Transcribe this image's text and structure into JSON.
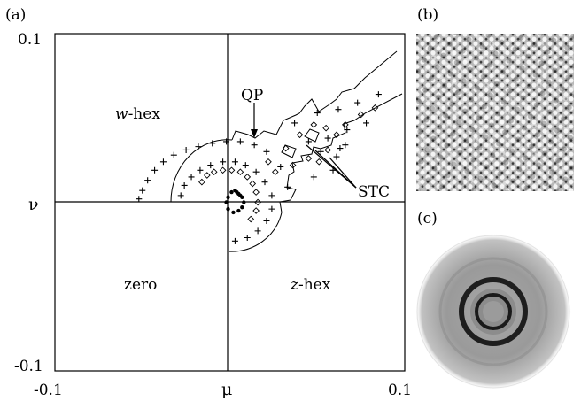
{
  "panel_labels": {
    "a": "(a)",
    "b": "(b)",
    "c": "(c)"
  },
  "axes": {
    "xlabel": "μ",
    "ylabel": "ν",
    "x_ticks": [
      "-0.1",
      "0.1"
    ],
    "y_ticks": [
      "0.1",
      "-0.1"
    ]
  },
  "region_labels": {
    "w_prefix": "w",
    "w_suffix": "-hex",
    "zero": "zero",
    "z_prefix": "z",
    "z_suffix": "-hex",
    "qp": "QP",
    "stc": "STC"
  },
  "chart_data": {
    "type": "scatter",
    "xlim": [
      -0.1,
      0.1
    ],
    "ylim": [
      -0.1,
      0.1
    ],
    "grid": false,
    "series": [
      {
        "marker": "plus",
        "points": [
          [
            -0.052,
            0.002
          ],
          [
            -0.05,
            0.007
          ],
          [
            -0.047,
            0.013
          ],
          [
            -0.043,
            0.019
          ],
          [
            -0.038,
            0.024
          ],
          [
            -0.032,
            0.028
          ],
          [
            -0.025,
            0.031
          ],
          [
            -0.018,
            0.033
          ],
          [
            -0.01,
            0.035
          ],
          [
            -0.002,
            0.036
          ],
          [
            0.006,
            0.036
          ],
          [
            0.014,
            0.034
          ],
          [
            0.021,
            0.03
          ],
          [
            0.029,
            0.021
          ],
          [
            0.033,
            0.009
          ],
          [
            -0.028,
            0.004
          ],
          [
            -0.026,
            0.01
          ],
          [
            -0.022,
            0.015
          ],
          [
            -0.017,
            0.019
          ],
          [
            -0.011,
            0.022
          ],
          [
            -0.004,
            0.024
          ],
          [
            0.003,
            0.024
          ],
          [
            0.009,
            0.022
          ],
          [
            0.015,
            0.018
          ],
          [
            0.02,
            0.012
          ],
          [
            0.024,
            0.004
          ],
          [
            0.024,
            -0.004
          ],
          [
            0.021,
            -0.011
          ],
          [
            0.016,
            -0.017
          ],
          [
            0.01,
            -0.021
          ],
          [
            0.003,
            -0.023
          ],
          [
            0.037,
            0.047
          ],
          [
            0.05,
            0.053
          ],
          [
            0.062,
            0.055
          ],
          [
            0.073,
            0.059
          ],
          [
            0.085,
            0.064
          ],
          [
            0.045,
            0.036
          ],
          [
            0.056,
            0.038
          ],
          [
            0.067,
            0.043
          ],
          [
            0.078,
            0.047
          ],
          [
            0.052,
            0.03
          ],
          [
            0.063,
            0.032
          ],
          [
            0.048,
            0.015
          ],
          [
            0.059,
            0.019
          ],
          [
            0.061,
            0.027
          ],
          [
            0.066,
            0.034
          ]
        ]
      },
      {
        "marker": "diamond",
        "points": [
          [
            -0.016,
            0.012
          ],
          [
            -0.013,
            0.016
          ],
          [
            -0.009,
            0.018
          ],
          [
            -0.004,
            0.019
          ],
          [
            0.001,
            0.019
          ],
          [
            0.006,
            0.018
          ],
          [
            0.01,
            0.015
          ],
          [
            0.013,
            0.011
          ],
          [
            0.015,
            0.006
          ],
          [
            0.016,
            0.0
          ],
          [
            0.015,
            -0.005
          ],
          [
            0.012,
            -0.01
          ],
          [
            0.022,
            0.024
          ],
          [
            0.032,
            0.032
          ],
          [
            0.04,
            0.04
          ],
          [
            0.048,
            0.046
          ],
          [
            0.055,
            0.044
          ],
          [
            0.066,
            0.046
          ],
          [
            0.075,
            0.052
          ],
          [
            0.083,
            0.056
          ],
          [
            0.026,
            0.018
          ],
          [
            0.036,
            0.022
          ],
          [
            0.045,
            0.026
          ],
          [
            0.051,
            0.024
          ],
          [
            0.056,
            0.031
          ],
          [
            0.061,
            0.04
          ]
        ]
      },
      {
        "marker": "filled-arc",
        "points": [
          [
            0.003,
            0.007
          ],
          [
            0.005,
            0.005
          ],
          [
            0.007,
            0.003
          ],
          [
            0.008,
            0.0
          ],
          [
            0.007,
            -0.003
          ],
          [
            0.005,
            -0.005
          ],
          [
            0.002,
            -0.006
          ],
          [
            -0.001,
            -0.004
          ],
          [
            -0.002,
            0.0
          ],
          [
            -0.001,
            0.003
          ],
          [
            0.001,
            0.006
          ],
          [
            0.004,
            0.006
          ],
          [
            0.006,
            0.004
          ]
        ]
      }
    ]
  }
}
